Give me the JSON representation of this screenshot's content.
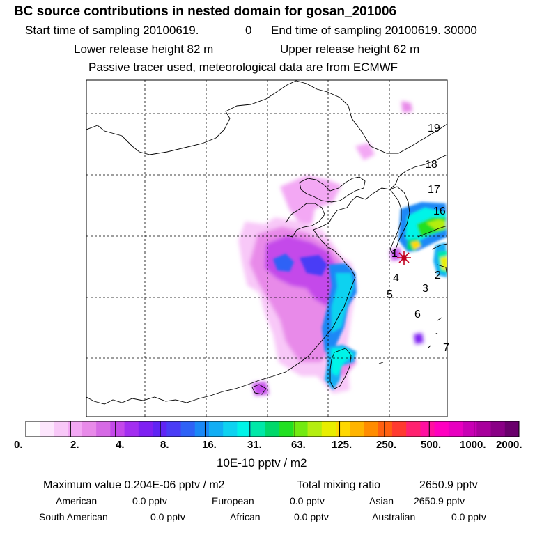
{
  "header": {
    "title": "BC  source contributions in nested domain for gosan_201006",
    "start_label": "Start time of sampling 20100619.",
    "start_hour": "0",
    "end_label": "End time of sampling 20100619. 30000",
    "lower_height": "Lower release height   82 m",
    "upper_height": "Upper release height   62 m",
    "tracer_note": "Passive tracer used, meteorological data are from ECMWF"
  },
  "map": {
    "receptor_marker": "receptor-star-icon",
    "day_labels": [
      "19",
      "18",
      "17",
      "16",
      "1",
      "2",
      "3",
      "4",
      "5",
      "6",
      "7"
    ]
  },
  "colorbar": {
    "ticks": [
      "0.",
      "2.",
      "4.",
      "8.",
      "16.",
      "31.",
      "63.",
      "125.",
      "250.",
      "500.",
      "1000.",
      "2000."
    ],
    "unit": "10E-10 pptv / m2",
    "colors": [
      "#ffffff",
      "#fde6fd",
      "#f8c8f8",
      "#f3a8f4",
      "#e88ae9",
      "#d66ae5",
      "#c448ea",
      "#a32ef0",
      "#7f20f2",
      "#6024f4",
      "#4a3cf6",
      "#2e62f6",
      "#1a88f6",
      "#12aef4",
      "#0ed2f0",
      "#00f4e8",
      "#00e8a8",
      "#00d86a",
      "#22e022",
      "#72ea10",
      "#b4ee10",
      "#e8ee00",
      "#ffd800",
      "#ffb400",
      "#ff8c00",
      "#ff6010",
      "#ff3a30",
      "#ff2270",
      "#ff10a0",
      "#ff00c0",
      "#e800c0",
      "#c800b4",
      "#a8009c",
      "#8a0086",
      "#6a006c"
    ]
  },
  "stats": {
    "max_label": "Maximum value  0.204E-06 pptv / m2",
    "total_label": "Total mixing ratio",
    "total_value": "2650.9 pptv"
  },
  "sources": [
    {
      "name": "American",
      "value": "0.0 pptv"
    },
    {
      "name": "European",
      "value": "0.0 pptv"
    },
    {
      "name": "Asian",
      "value": "2650.9 pptv"
    },
    {
      "name": "South American",
      "value": "0.0 pptv"
    },
    {
      "name": "African",
      "value": "0.0 pptv"
    },
    {
      "name": "Australian",
      "value": "0.0 pptv"
    }
  ]
}
